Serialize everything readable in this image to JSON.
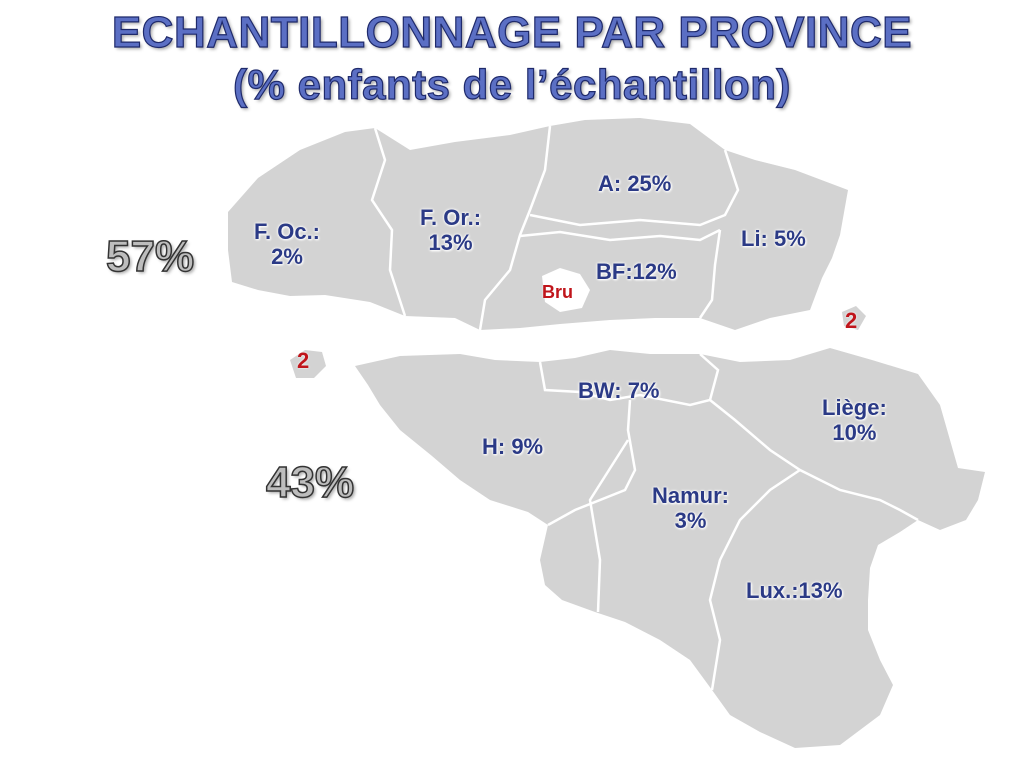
{
  "title": {
    "line1": "ECHANTILLONNAGE  PAR PROVINCE",
    "line2": "(% enfants de l’échantillon)"
  },
  "regions": {
    "north_total": "57%",
    "south_total": "43%"
  },
  "provinces": [
    {
      "id": "f-oc",
      "text": "F. Oc.:\n2%"
    },
    {
      "id": "f-or",
      "text": "F. Or.:\n13%"
    },
    {
      "id": "a",
      "text": "A: 25%"
    },
    {
      "id": "li",
      "text": "Li: 5%"
    },
    {
      "id": "bf",
      "text": "BF:12%"
    },
    {
      "id": "bru",
      "text": "Bru"
    },
    {
      "id": "bw",
      "text": "BW: 7%"
    },
    {
      "id": "h",
      "text": "H: 9%"
    },
    {
      "id": "liege",
      "text": "Liège:\n10%"
    },
    {
      "id": "namur",
      "text": "Namur:\n3%"
    },
    {
      "id": "lux",
      "text": "Lux.:13%"
    }
  ],
  "markers": {
    "marker_north": "2",
    "marker_south": "2"
  },
  "colors": {
    "land": "#d3d3d3",
    "label": "#2b3a86",
    "brussels": "#c0151b"
  }
}
